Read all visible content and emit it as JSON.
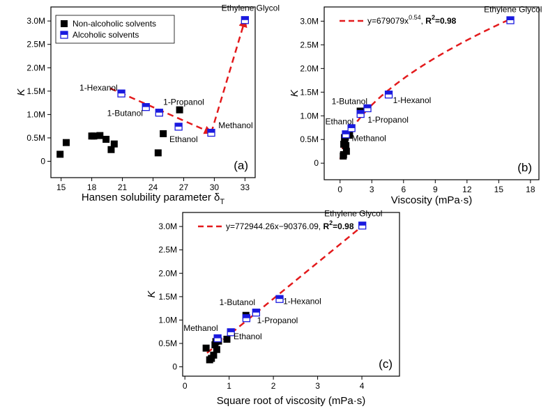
{
  "chart_data": [
    {
      "id": "a",
      "type": "scatter",
      "panel_label": "(a)",
      "xlabel": "Hansen solubility parameter δ",
      "xlabel_sub": "T",
      "ylabel": "K",
      "xlim": [
        14,
        34
      ],
      "ylim": [
        -0.35,
        3.3
      ],
      "xticks": [
        15,
        18,
        21,
        24,
        27,
        30,
        33
      ],
      "yticks": [
        0,
        0.5,
        1.0,
        1.5,
        2.0,
        2.5,
        3.0
      ],
      "ytick_labels": [
        "0",
        "0.5M",
        "1.0M",
        "1.5M",
        "2.0M",
        "2.5M",
        "3.0M"
      ],
      "legend": {
        "position": "top-left",
        "entries": [
          {
            "label": "Non-alcoholic solvents",
            "marker": "filled-square"
          },
          {
            "label": "Alcoholic solvents",
            "marker": "half-square"
          }
        ]
      },
      "series": [
        {
          "name": "Non-alcoholic solvents",
          "marker": "filled-square",
          "color": "#000000",
          "points": [
            [
              14.9,
              0.15
            ],
            [
              15.5,
              0.4
            ],
            [
              18.0,
              0.54
            ],
            [
              18.2,
              0.54
            ],
            [
              18.8,
              0.55
            ],
            [
              19.4,
              0.47
            ],
            [
              19.9,
              0.25
            ],
            [
              20.2,
              0.37
            ],
            [
              24.5,
              0.18
            ],
            [
              25.0,
              0.59
            ],
            [
              26.6,
              1.1
            ]
          ]
        },
        {
          "name": "Alcoholic solvents",
          "marker": "half-square",
          "color": "#1a1adf",
          "points": [
            [
              20.9,
              1.45
            ],
            [
              23.3,
              1.16
            ],
            [
              24.6,
              1.04
            ],
            [
              26.5,
              0.74
            ],
            [
              29.7,
              0.61
            ],
            [
              33.0,
              3.02
            ]
          ]
        }
      ],
      "arrows": [
        {
          "color": "#e31a1c",
          "path": [
            [
              19.8,
              1.56
            ],
            [
              29.7,
              0.61
            ],
            [
              33.0,
              3.02
            ]
          ]
        }
      ],
      "annotations": [
        {
          "text": "Ethylene Glycol",
          "x": 30.7,
          "y": 3.22
        },
        {
          "text": "1-Hexanol",
          "x": 16.8,
          "y": 1.51
        },
        {
          "text": "1-Butanol",
          "x": 19.5,
          "y": 0.97
        },
        {
          "text": "1-Propanol",
          "x": 25.0,
          "y": 1.21
        },
        {
          "text": "Methanol",
          "x": 30.4,
          "y": 0.71
        },
        {
          "text": "Ethanol",
          "x": 25.6,
          "y": 0.41
        }
      ]
    },
    {
      "id": "b",
      "type": "scatter",
      "panel_label": "(b)",
      "xlabel": "Viscosity (mPa·s)",
      "ylabel": "K",
      "xlim": [
        -1.5,
        18.8
      ],
      "ylim": [
        -0.35,
        3.3
      ],
      "xticks": [
        0,
        3,
        6,
        9,
        12,
        15,
        18
      ],
      "yticks": [
        0,
        0.5,
        1.0,
        1.5,
        2.0,
        2.5,
        3.0
      ],
      "ytick_labels": [
        "0",
        "0.5M",
        "1.0M",
        "1.5M",
        "2.0M",
        "2.5M",
        "3.0M"
      ],
      "fit": {
        "equation": "y=679079x",
        "exponent": "0.54",
        "r2_label": "R",
        "r2_sup": "2",
        "r2_value": "=0.98",
        "a": 679079,
        "b": 0.54,
        "color": "#e31a1c"
      },
      "series": [
        {
          "name": "Non-alcoholic solvents",
          "marker": "filled-square",
          "color": "#000000",
          "points": [
            [
              0.3,
              0.15
            ],
            [
              0.35,
              0.4
            ],
            [
              0.42,
              0.54
            ],
            [
              0.5,
              0.55
            ],
            [
              0.45,
              0.47
            ],
            [
              0.6,
              0.25
            ],
            [
              0.55,
              0.37
            ],
            [
              0.33,
              0.18
            ],
            [
              0.9,
              0.59
            ],
            [
              1.9,
              1.1
            ]
          ]
        },
        {
          "name": "Alcoholic solvents",
          "marker": "half-square",
          "color": "#1a1adf",
          "points": [
            [
              0.55,
              0.61
            ],
            [
              1.08,
              0.74
            ],
            [
              1.94,
              1.04
            ],
            [
              2.59,
              1.16
            ],
            [
              4.6,
              1.45
            ],
            [
              16.1,
              3.02
            ]
          ]
        }
      ],
      "annotations": [
        {
          "text": "Ethylene Glycol",
          "x": 13.6,
          "y": 3.19
        },
        {
          "text": "1-Butanol",
          "x": -0.8,
          "y": 1.25
        },
        {
          "text": "1-Hexanol",
          "x": 5.0,
          "y": 1.27
        },
        {
          "text": "Ethanol",
          "x": -1.4,
          "y": 0.82
        },
        {
          "text": "1-Propanol",
          "x": 2.6,
          "y": 0.86
        },
        {
          "text": "Methanol",
          "x": 1.1,
          "y": 0.47
        }
      ]
    },
    {
      "id": "c",
      "type": "scatter",
      "panel_label": "(c)",
      "xlabel": "Square root of viscosity (mPa·s)",
      "ylabel": "K",
      "xlim": [
        -0.05,
        4.85
      ],
      "ylim": [
        -0.2,
        3.3
      ],
      "xticks": [
        0,
        1,
        2,
        3,
        4
      ],
      "yticks": [
        0,
        0.5,
        1.0,
        1.5,
        2.0,
        2.5,
        3.0
      ],
      "ytick_labels": [
        "0",
        "0.5M",
        "1.0M",
        "1.5M",
        "2.0M",
        "2.5M",
        "3.0M"
      ],
      "fit": {
        "equation": "y=772944.26x−90376.09, ",
        "r2_label": "R",
        "r2_sup": "2",
        "r2_value": "=0.98",
        "slope": 772944.26,
        "intercept": -90376.09,
        "color": "#e31a1c"
      },
      "series": [
        {
          "name": "Non-alcoholic solvents",
          "marker": "filled-square",
          "color": "#000000",
          "points": [
            [
              0.48,
              0.4
            ],
            [
              0.56,
              0.15
            ],
            [
              0.6,
              0.18
            ],
            [
              0.65,
              0.25
            ],
            [
              0.68,
              0.47
            ],
            [
              0.7,
              0.54
            ],
            [
              0.72,
              0.37
            ],
            [
              0.76,
              0.55
            ],
            [
              0.95,
              0.59
            ],
            [
              1.38,
              1.1
            ]
          ]
        },
        {
          "name": "Alcoholic solvents",
          "marker": "half-square",
          "color": "#1a1adf",
          "points": [
            [
              0.74,
              0.61
            ],
            [
              1.04,
              0.74
            ],
            [
              1.39,
              1.04
            ],
            [
              1.61,
              1.16
            ],
            [
              2.14,
              1.45
            ],
            [
              4.01,
              3.02
            ]
          ]
        }
      ],
      "annotations": [
        {
          "text": "Ethylene Glycol",
          "x": 3.15,
          "y": 3.22
        },
        {
          "text": "1-Butanol",
          "x": 0.78,
          "y": 1.32
        },
        {
          "text": "1-Hexanol",
          "x": 2.22,
          "y": 1.34
        },
        {
          "text": "1-Propanol",
          "x": 1.63,
          "y": 0.93
        },
        {
          "text": "Methanol",
          "x": -0.03,
          "y": 0.77
        },
        {
          "text": "Ethanol",
          "x": 1.1,
          "y": 0.59
        }
      ]
    }
  ]
}
